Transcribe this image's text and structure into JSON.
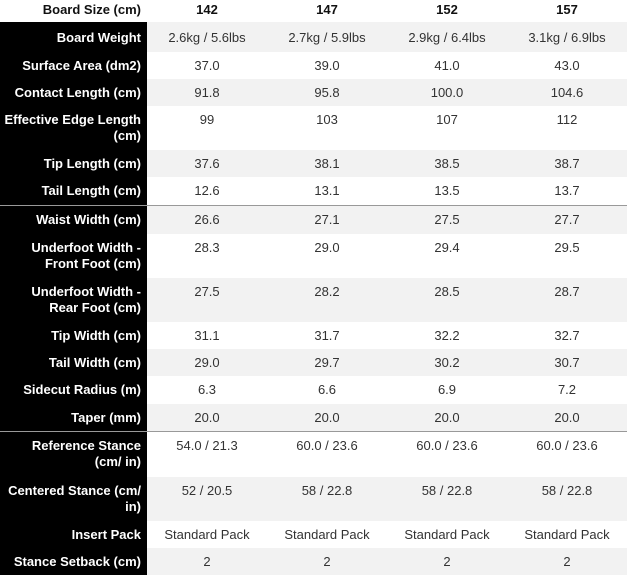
{
  "table": {
    "header": [
      "Board Size (cm)",
      "142",
      "147",
      "152",
      "157"
    ],
    "rows": [
      [
        "Board Weight",
        "2.6kg / 5.6lbs",
        "2.7kg / 5.9lbs",
        "2.9kg / 6.4lbs",
        "3.1kg / 6.9lbs"
      ],
      [
        "Surface Area (dm2)",
        "37.0",
        "39.0",
        "41.0",
        "43.0"
      ],
      [
        "Contact Length (cm)",
        "91.8",
        "95.8",
        "100.0",
        "104.6"
      ],
      [
        "Effective Edge Length (cm)",
        "99",
        "103",
        "107",
        "112"
      ],
      [
        "Tip Length (cm)",
        "37.6",
        "38.1",
        "38.5",
        "38.7"
      ],
      [
        "Tail Length (cm)",
        "12.6",
        "13.1",
        "13.5",
        "13.7"
      ],
      [
        "Waist Width (cm)",
        "26.6",
        "27.1",
        "27.5",
        "27.7"
      ],
      [
        "Underfoot Width - Front Foot (cm)",
        "28.3",
        "29.0",
        "29.4",
        "29.5"
      ],
      [
        "Underfoot Width - Rear Foot (cm)",
        "27.5",
        "28.2",
        "28.5",
        "28.7"
      ],
      [
        "Tip Width (cm)",
        "31.1",
        "31.7",
        "32.2",
        "32.7"
      ],
      [
        "Tail Width (cm)",
        "29.0",
        "29.7",
        "30.2",
        "30.7"
      ],
      [
        "Sidecut Radius (m)",
        "6.3",
        "6.6",
        "6.9",
        "7.2"
      ],
      [
        "Taper (mm)",
        "20.0",
        "20.0",
        "20.0",
        "20.0"
      ],
      [
        "Reference Stance (cm/ in)",
        "54.0 / 21.3",
        "60.0 / 23.6",
        "60.0 / 23.6",
        "60.0 / 23.6"
      ],
      [
        "Centered Stance (cm/ in)",
        "52 / 20.5",
        "58 / 22.8",
        "58 / 22.8",
        "58 / 22.8"
      ],
      [
        "Insert Pack",
        "Standard Pack",
        "Standard Pack",
        "Standard Pack",
        "Standard Pack"
      ],
      [
        "Stance Setback (cm)",
        "2",
        "2",
        "2",
        "2"
      ]
    ]
  }
}
